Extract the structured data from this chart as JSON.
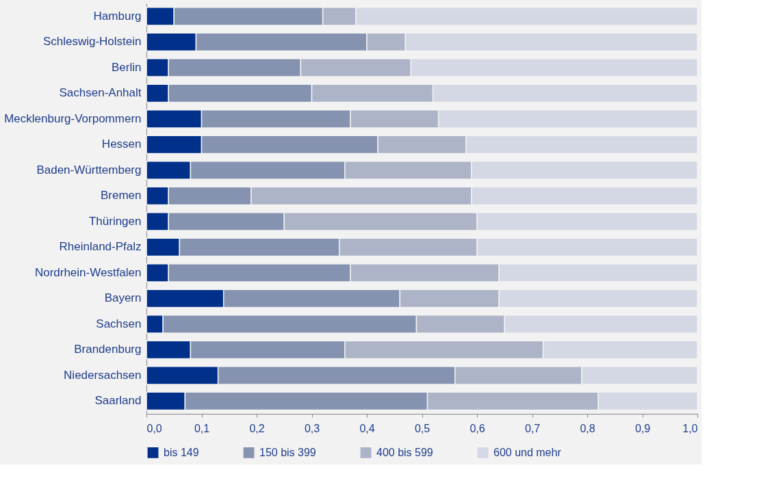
{
  "chart_data": {
    "type": "bar",
    "orientation": "horizontal",
    "stacked": true,
    "legend": "bottom",
    "grid": false,
    "categories": [
      "Hamburg",
      "Schleswig-Holstein",
      "Berlin",
      "Sachsen-Anhalt",
      "Mecklenburg-Vorpommern",
      "Hessen",
      "Baden-Württemberg",
      "Bremen",
      "Thüringen",
      "Rheinland-Pfalz",
      "Nordrhein-Westfalen",
      "Bayern",
      "Sachsen",
      "Brandenburg",
      "Niedersachsen",
      "Saarland"
    ],
    "series": [
      {
        "name": "bis 149",
        "color": "#00308a",
        "values": [
          0.05,
          0.09,
          0.04,
          0.04,
          0.1,
          0.1,
          0.08,
          0.04,
          0.04,
          0.06,
          0.04,
          0.14,
          0.03,
          0.08,
          0.13,
          0.07
        ]
      },
      {
        "name": "150 bis 399",
        "color": "#8593b0",
        "values": [
          0.27,
          0.31,
          0.24,
          0.26,
          0.27,
          0.32,
          0.28,
          0.15,
          0.21,
          0.29,
          0.33,
          0.32,
          0.46,
          0.28,
          0.43,
          0.44
        ]
      },
      {
        "name": "400 bis 599",
        "color": "#adb4c8",
        "values": [
          0.06,
          0.07,
          0.2,
          0.22,
          0.16,
          0.16,
          0.23,
          0.4,
          0.35,
          0.25,
          0.27,
          0.18,
          0.16,
          0.36,
          0.23,
          0.31
        ]
      },
      {
        "name": "600 und mehr",
        "color": "#d3d8e4",
        "values": [
          0.62,
          0.53,
          0.52,
          0.48,
          0.47,
          0.42,
          0.41,
          0.41,
          0.4,
          0.4,
          0.36,
          0.36,
          0.35,
          0.28,
          0.21,
          0.18
        ]
      }
    ],
    "xlim": [
      0,
      1
    ],
    "xticks": [
      {
        "value": 0,
        "label": "0,0"
      },
      {
        "value": 0.1,
        "label": "0,1"
      },
      {
        "value": 0.2,
        "label": "0,2"
      },
      {
        "value": 0.3,
        "label": "0,3"
      },
      {
        "value": 0.4,
        "label": "0,4"
      },
      {
        "value": 0.5,
        "label": "0,5"
      },
      {
        "value": 0.6,
        "label": "0,6"
      },
      {
        "value": 0.7,
        "label": "0,7"
      },
      {
        "value": 0.8,
        "label": "0,8"
      },
      {
        "value": 0.9,
        "label": "0,9"
      },
      {
        "value": 1,
        "label": "1,0"
      }
    ]
  }
}
